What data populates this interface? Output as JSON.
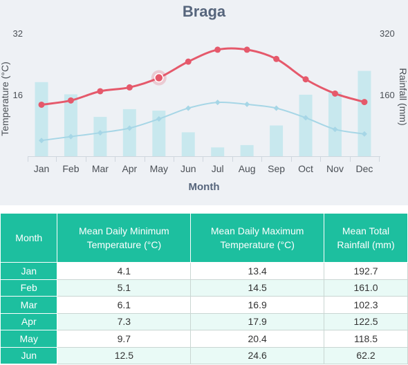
{
  "chart_data": {
    "type": "bar+line",
    "title": "Braga",
    "xlabel": "Month",
    "ylabel_left": "Temperature (°C)",
    "ylabel_right": "Rainfall (mm)",
    "categories": [
      "Jan",
      "Feb",
      "Mar",
      "Apr",
      "May",
      "Jun",
      "Jul",
      "Aug",
      "Sep",
      "Oct",
      "Nov",
      "Dec"
    ],
    "left_axis": {
      "ticks": [
        "16",
        "32"
      ],
      "ylim": [
        0,
        32
      ]
    },
    "right_axis": {
      "ticks": [
        "160",
        "320"
      ],
      "ylim": [
        0,
        320
      ]
    },
    "series": [
      {
        "name": "Mean Total Rainfall (mm)",
        "kind": "bar",
        "axis": "right",
        "color": "#c8e8ee",
        "values": [
          192.7,
          161.0,
          102.3,
          122.5,
          118.5,
          62.2,
          23.0,
          29.0,
          80.0,
          160.0,
          167.0,
          222.0
        ]
      },
      {
        "name": "Mean Daily Maximum Temperature (°C)",
        "kind": "line",
        "axis": "left",
        "color": "#e5596b",
        "values": [
          13.4,
          14.5,
          16.9,
          17.9,
          20.4,
          24.6,
          27.7,
          27.7,
          25.3,
          20.0,
          16.3,
          14.1
        ]
      },
      {
        "name": "Mean Daily Minimum Temperature (°C)",
        "kind": "line",
        "axis": "left",
        "color": "#a6d6e6",
        "values": [
          4.1,
          5.1,
          6.1,
          7.3,
          9.7,
          12.5,
          14.0,
          13.5,
          12.5,
          10.0,
          7.0,
          5.8
        ]
      }
    ],
    "highlight": {
      "series": 1,
      "index": 4
    },
    "grid": false,
    "legend": "none"
  },
  "table": {
    "headers": [
      "Month",
      "Mean Daily Minimum Temperature (°C)",
      "Mean Daily Maximum Temperature (°C)",
      "Mean Total Rainfall (mm)"
    ],
    "rows": [
      [
        "Jan",
        "4.1",
        "13.4",
        "192.7"
      ],
      [
        "Feb",
        "5.1",
        "14.5",
        "161.0"
      ],
      [
        "Mar",
        "6.1",
        "16.9",
        "102.3"
      ],
      [
        "Apr",
        "7.3",
        "17.9",
        "122.5"
      ],
      [
        "May",
        "9.7",
        "20.4",
        "118.5"
      ],
      [
        "Jun",
        "12.5",
        "24.6",
        "62.2"
      ]
    ]
  }
}
